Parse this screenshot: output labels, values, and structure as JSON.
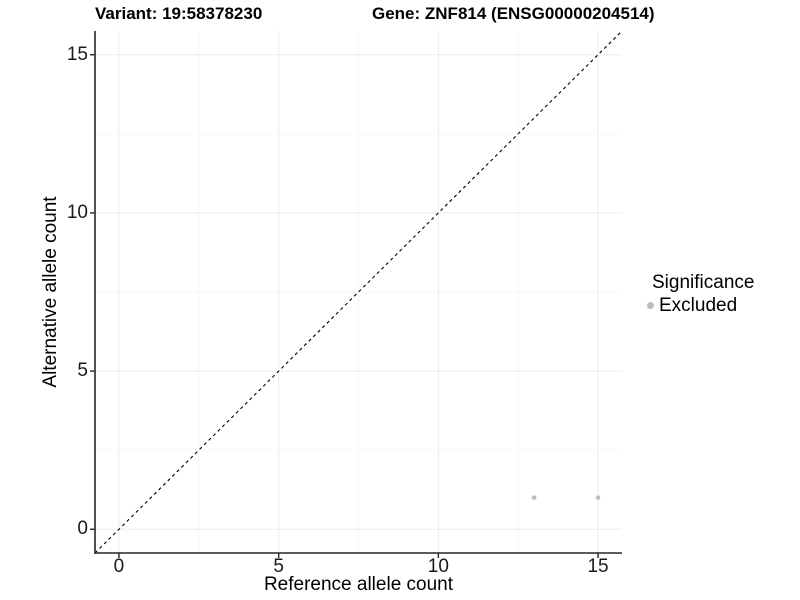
{
  "figure": {
    "titles": {
      "left": "Variant: 19:58378230",
      "right": "Gene: ZNF814 (ENSG00000204514)"
    },
    "axes": {
      "x_label": "Reference allele count",
      "y_label": "Alternative allele count"
    },
    "legend": {
      "title": "Significance",
      "position": "right",
      "items": [
        {
          "label": "Excluded",
          "color": "#bdbdbd"
        }
      ]
    }
  },
  "chart_data": {
    "type": "scatter",
    "title": "Variant: 19:58378230 | Gene: ZNF814 (ENSG00000204514)",
    "xlabel": "Reference allele count",
    "ylabel": "Alternative allele count",
    "xlim": [
      -0.75,
      15.75
    ],
    "ylim": [
      -0.75,
      15.75
    ],
    "x_ticks": [
      0,
      5,
      10,
      15
    ],
    "y_ticks": [
      0,
      5,
      10,
      15
    ],
    "x_minor_ticks": [
      2.5,
      7.5,
      12.5
    ],
    "y_minor_ticks": [
      2.5,
      7.5,
      12.5
    ],
    "grid": true,
    "legend_position": "right",
    "identity_line": {
      "style": "dashed",
      "from": [
        -0.75,
        -0.75
      ],
      "to": [
        15.75,
        15.75
      ]
    },
    "series": [
      {
        "name": "Excluded",
        "color": "#bdbdbd",
        "points": [
          [
            13,
            1
          ],
          [
            15,
            1
          ]
        ]
      }
    ]
  },
  "colors": {
    "background": "#ffffff",
    "grid_major": "#ebebeb",
    "grid_minor": "#f7f7f7",
    "axis_line": "#262626",
    "tick_label": "#1a1a1a",
    "identity_line": "#000000",
    "excluded_point": "#bdbdbd"
  }
}
